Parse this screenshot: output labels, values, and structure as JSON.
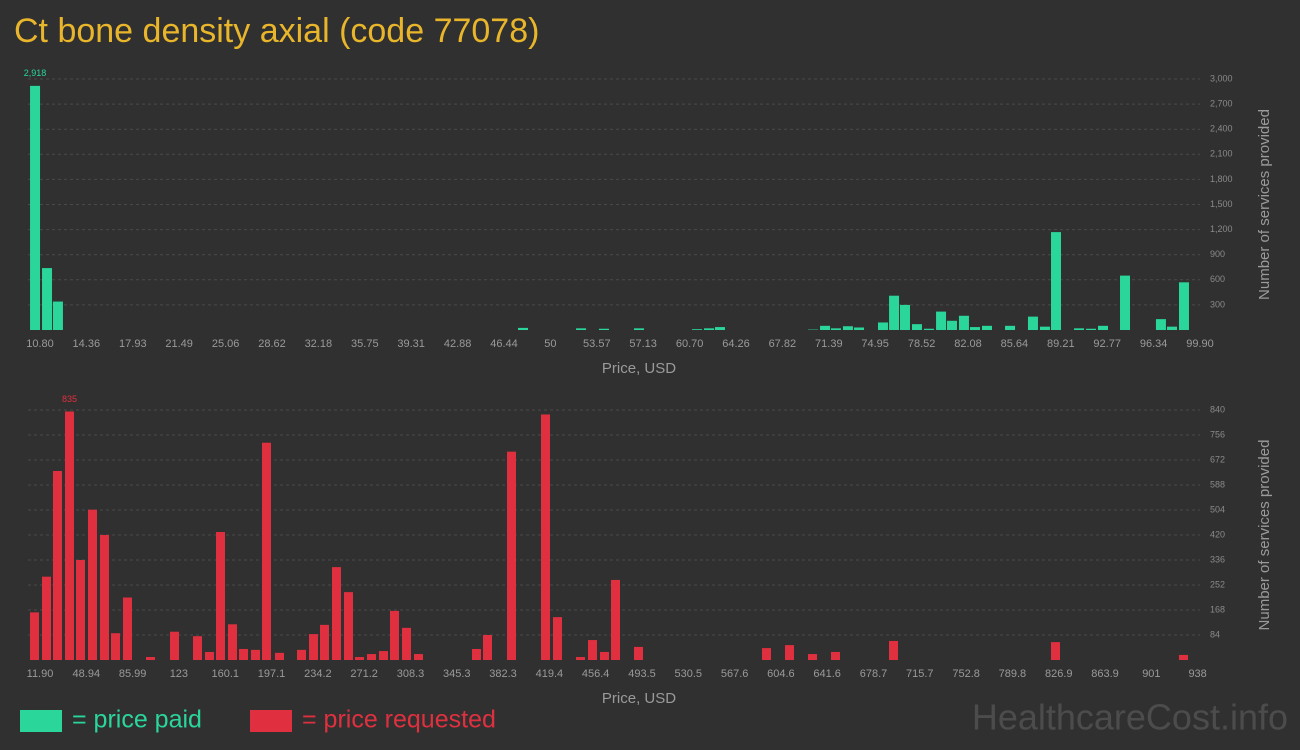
{
  "title": "Ct bone density axial (code 77078)",
  "watermark": "HealthcareCost.info",
  "chart_data": [
    {
      "type": "bar",
      "xlabel": "Price, USD",
      "ylabel": "Number of services provided",
      "xlim": [
        9.88,
        99.9
      ],
      "ylim": [
        0,
        3000
      ],
      "grid": true,
      "yticks": [
        300,
        600,
        900,
        {
          "value": 1200,
          "label": "1,200"
        },
        {
          "value": 1500,
          "label": "1,500"
        },
        {
          "value": 1800,
          "label": "1,800"
        },
        {
          "value": 2100,
          "label": "2,100"
        },
        {
          "value": 2400,
          "label": "2,400"
        },
        {
          "value": 2700,
          "label": "2,700"
        },
        {
          "value": 3000,
          "label": "3,000"
        }
      ],
      "xticks": [
        {
          "value": 10.8,
          "label": "10.80"
        },
        14.36,
        17.93,
        21.49,
        25.06,
        28.62,
        32.18,
        35.75,
        39.31,
        42.88,
        46.44,
        50,
        53.57,
        57.13,
        {
          "value": 60.7,
          "label": "60.70"
        },
        64.26,
        67.82,
        71.39,
        74.95,
        78.52,
        82.08,
        85.64,
        89.21,
        92.77,
        96.34,
        {
          "value": 99.9,
          "label": "99.90"
        }
      ],
      "x": [
        10.42,
        11.34,
        12.18,
        47.9,
        52.36,
        54.12,
        56.81,
        61.27,
        62.19,
        63.03,
        70.17,
        71.1,
        71.94,
        72.86,
        73.71,
        75.55,
        76.4,
        77.24,
        78.16,
        79.08,
        80.01,
        80.85,
        81.77,
        82.62,
        83.54,
        85.31,
        87.07,
        87.99,
        88.84,
        90.61,
        91.53,
        92.45,
        94.14,
        96.9,
        97.75,
        98.67
      ],
      "series": [
        {
          "name": "= price paid",
          "color": "#2ad69a",
          "values": [
            2918,
            740,
            340,
            25,
            20,
            15,
            20,
            10,
            20,
            35,
            5,
            50,
            20,
            45,
            30,
            90,
            410,
            300,
            70,
            15,
            220,
            110,
            170,
            35,
            50,
            50,
            160,
            40,
            1170,
            20,
            15,
            50,
            650,
            130,
            40,
            570
          ],
          "value_labels": [
            "2,918",
            null,
            null,
            null,
            null,
            null,
            null,
            null,
            null,
            null,
            null,
            null,
            null,
            null,
            null,
            null,
            null,
            null,
            null,
            null,
            null,
            null,
            null,
            null,
            null,
            null,
            null,
            null,
            null,
            null,
            null,
            null,
            null,
            null,
            null,
            null
          ]
        }
      ]
    },
    {
      "type": "bar",
      "xlabel": "Price, USD",
      "ylabel": "Number of services provided",
      "xlim": [
        2.3,
        939.9
      ],
      "ylim": [
        0,
        840
      ],
      "grid": true,
      "yticks": [
        84,
        168,
        252,
        336,
        420,
        504,
        588,
        672,
        756,
        840
      ],
      "xticks": [
        {
          "value": 11.9,
          "label": "11.90"
        },
        48.94,
        85.99,
        123,
        160.1,
        197.1,
        234.2,
        271.2,
        308.3,
        345.3,
        382.3,
        419.4,
        456.4,
        493.5,
        530.5,
        567.6,
        604.6,
        641.6,
        678.7,
        715.7,
        752.8,
        789.8,
        826.9,
        863.9,
        901,
        938
      ],
      "x": [
        7.5,
        17.1,
        25.9,
        35.5,
        44.3,
        53.9,
        63.5,
        72.3,
        81.9,
        100.3,
        119.5,
        137.9,
        147.5,
        156.3,
        165.9,
        174.7,
        184.3,
        193.1,
        203.5,
        221.1,
        230.7,
        239.5,
        249.1,
        258.7,
        267.5,
        277.1,
        286.7,
        295.5,
        305.1,
        314.7,
        361.1,
        369.9,
        389.1,
        416.3,
        425.9,
        444.3,
        453.9,
        463.5,
        472.3,
        490.7,
        593.1,
        611.5,
        629.9,
        648.3,
        694.7,
        824.3,
        926.7
      ],
      "series": [
        {
          "name": "= price requested",
          "color": "#e0303f",
          "values": [
            160,
            280,
            635,
            835,
            336,
            505,
            420,
            90,
            210,
            10,
            95,
            80,
            27,
            430,
            120,
            37,
            34,
            730,
            24,
            34,
            87,
            118,
            312,
            228,
            10,
            20,
            30,
            165,
            108,
            20,
            37,
            84,
            700,
            825,
            144,
            10,
            67,
            27,
            269,
            44,
            40,
            50,
            20,
            27,
            64,
            60,
            17
          ],
          "value_labels": [
            null,
            null,
            null,
            "835",
            null,
            null,
            null,
            null,
            null,
            null,
            null,
            null,
            null,
            null,
            null,
            null,
            null,
            null,
            null,
            null,
            null,
            null,
            null,
            null,
            null,
            null,
            null,
            null,
            null,
            null,
            null,
            null,
            null,
            null,
            null,
            null,
            null,
            null,
            null,
            null,
            null,
            null,
            null,
            null,
            null,
            null,
            null
          ]
        }
      ]
    }
  ]
}
